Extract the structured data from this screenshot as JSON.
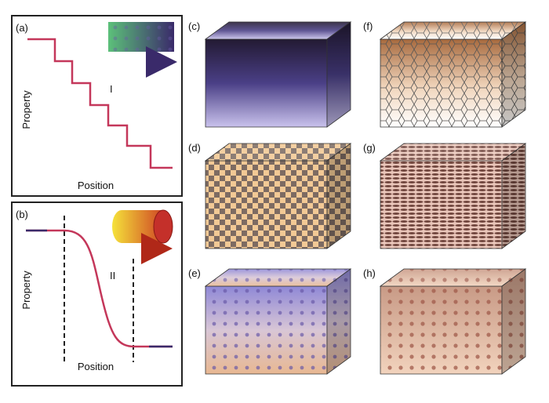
{
  "panels": [
    {
      "label": "(a)",
      "y_label": "Property",
      "x_label": "Position",
      "marker": "I"
    },
    {
      "label": "(b)",
      "y_label": "Property",
      "x_label": "Position",
      "marker": "II"
    },
    {
      "label": "(c)"
    },
    {
      "label": "(d)"
    },
    {
      "label": "(e)"
    },
    {
      "label": "(f)"
    },
    {
      "label": "(g)"
    },
    {
      "label": "(h)"
    }
  ]
}
